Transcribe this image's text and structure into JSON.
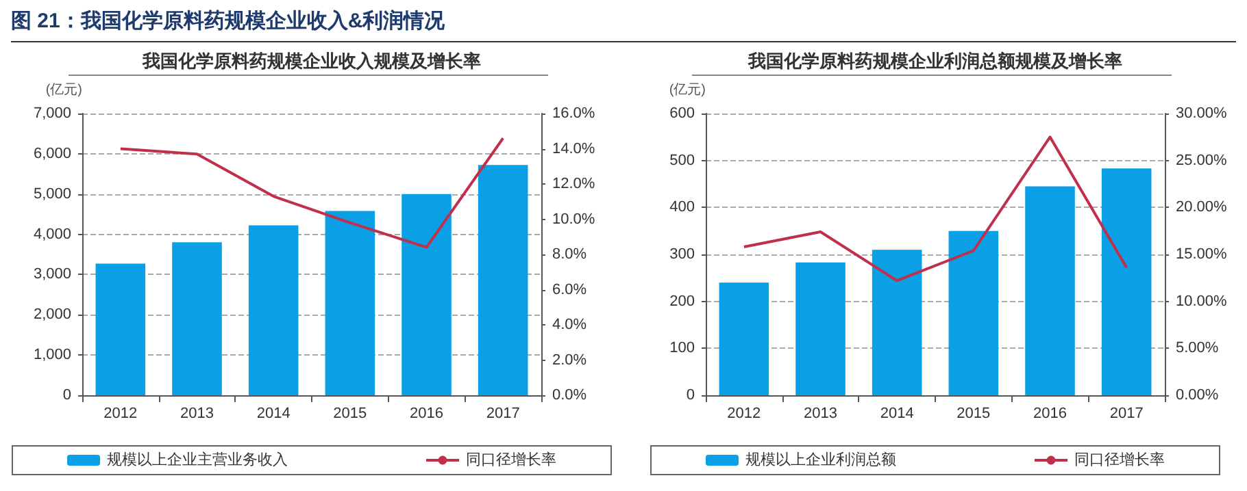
{
  "chart_data": [
    {
      "type": "bar",
      "title": "我国化学原料药规模企业收入规模及增长率",
      "annotations": [
        "图 21：我国化学原料药规模企业收入&利润情况"
      ],
      "ylabel": "(亿元)",
      "categories": [
        "2012",
        "2013",
        "2014",
        "2015",
        "2016",
        "2017"
      ],
      "grid": "y",
      "legend": "bottom",
      "marker": "none",
      "series": [
        {
          "name": "规模以上企业主营业务收入",
          "color": "#0ba0e6",
          "values": [
            3270,
            3800,
            4220,
            4580,
            5000,
            5720
          ]
        },
        {
          "name": "同口径增长率",
          "type": "line",
          "axis": "y2",
          "color": "#c0304a",
          "values": [
            14.0,
            13.7,
            11.3,
            9.8,
            8.4,
            14.6
          ]
        }
      ],
      "ylim": [
        0,
        7000
      ],
      "yticks": [
        0,
        {
          "value": 1000,
          "label": "1,000"
        },
        {
          "value": 2000,
          "label": "2,000"
        },
        {
          "value": 3000,
          "label": "3,000"
        },
        {
          "value": 4000,
          "label": "4,000"
        },
        {
          "value": 5000,
          "label": "5,000"
        },
        {
          "value": 6000,
          "label": "6,000"
        },
        {
          "value": 7000,
          "label": "7,000"
        }
      ],
      "y2lim": [
        0,
        16
      ],
      "y2ticks": [
        {
          "value": 0,
          "label": "0.0%"
        },
        {
          "value": 2,
          "label": "2.0%"
        },
        {
          "value": 4,
          "label": "4.0%"
        },
        {
          "value": 6,
          "label": "6.0%"
        },
        {
          "value": 8,
          "label": "8.0%"
        },
        {
          "value": 10,
          "label": "10.0%"
        },
        {
          "value": 12,
          "label": "12.0%"
        },
        {
          "value": 14,
          "label": "14.0%"
        },
        {
          "value": 16,
          "label": "16.0%"
        }
      ]
    },
    {
      "type": "bar",
      "title": "我国化学原料药规模企业利润总额规模及增长率",
      "ylabel": "(亿元)",
      "categories": [
        "2012",
        "2013",
        "2014",
        "2015",
        "2016",
        "2017"
      ],
      "grid": "y",
      "legend": "bottom",
      "marker": "none",
      "series": [
        {
          "name": "规模以上企业利润总额",
          "color": "#0ba0e6",
          "values": [
            240,
            283,
            310,
            350,
            445,
            483
          ]
        },
        {
          "name": "同口径增长率",
          "type": "line",
          "axis": "y2",
          "color": "#c0304a",
          "values": [
            15.8,
            17.4,
            12.2,
            15.4,
            27.5,
            13.6
          ]
        }
      ],
      "ylim": [
        0,
        600
      ],
      "yticks": [
        0,
        100,
        200,
        300,
        400,
        500,
        600
      ],
      "y2lim": [
        0,
        30
      ],
      "y2ticks": [
        {
          "value": 0,
          "label": "0.00%"
        },
        {
          "value": 5,
          "label": "5.00%"
        },
        {
          "value": 10,
          "label": "10.00%"
        },
        {
          "value": 15,
          "label": "15.00%"
        },
        {
          "value": 20,
          "label": "20.00%"
        },
        {
          "value": 25,
          "label": "25.00%"
        },
        {
          "value": 30,
          "label": "30.00%"
        }
      ]
    }
  ]
}
